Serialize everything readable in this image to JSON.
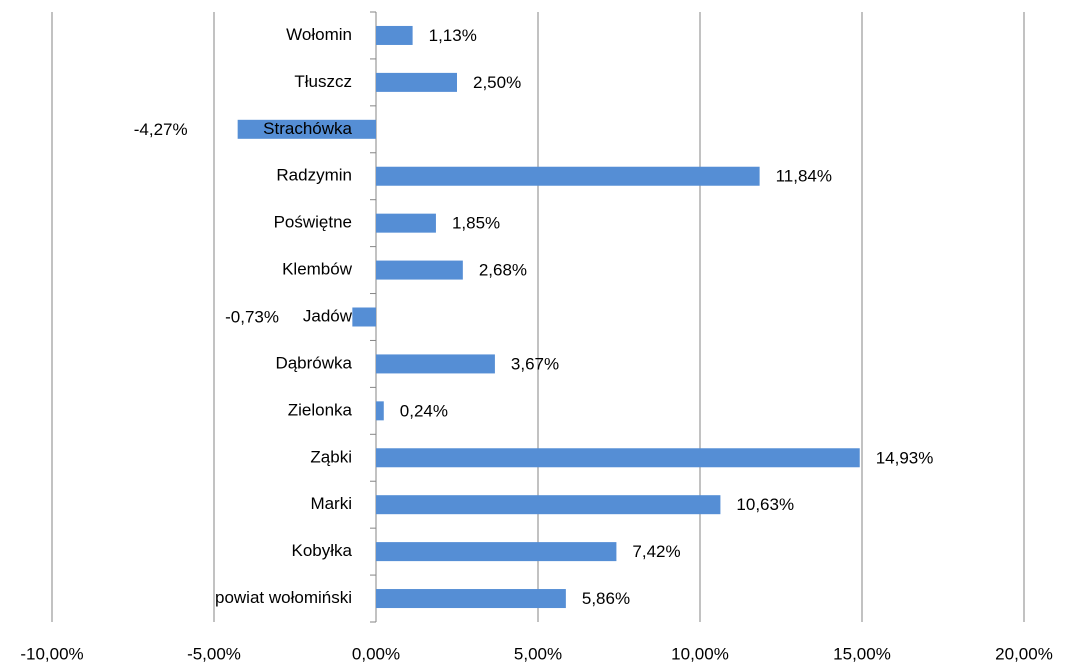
{
  "chart_data": {
    "type": "bar",
    "orientation": "horizontal",
    "categories": [
      "Wołomin",
      "Tłuszcz",
      "Strachówka",
      "Radzymin",
      "Poświętne",
      "Klembów",
      "Jadów",
      "Dąbrówka",
      "Zielonka",
      "Ząbki",
      "Marki",
      "Kobyłka",
      "powiat wołomiński"
    ],
    "values": [
      1.13,
      2.5,
      -4.27,
      11.84,
      1.85,
      2.68,
      -0.73,
      3.67,
      0.24,
      14.93,
      10.63,
      7.42,
      5.86
    ],
    "value_labels": [
      "1,13%",
      "2,50%",
      "-4,27%",
      "11,84%",
      "1,85%",
      "2,68%",
      "-0,73%",
      "3,67%",
      "0,24%",
      "14,93%",
      "10,63%",
      "7,42%",
      "5,86%"
    ],
    "color": "#558ed5",
    "xlim": [
      -10,
      20
    ],
    "xticks": [
      {
        "value": -10,
        "label": "-10,00%"
      },
      {
        "value": -5,
        "label": "-5,00%"
      },
      {
        "value": 0,
        "label": "0,00%"
      },
      {
        "value": 5,
        "label": "5,00%"
      },
      {
        "value": 10,
        "label": "10,00%"
      },
      {
        "value": 15,
        "label": "15,00%"
      },
      {
        "value": 20,
        "label": "20,00%"
      }
    ],
    "grid": true
  }
}
